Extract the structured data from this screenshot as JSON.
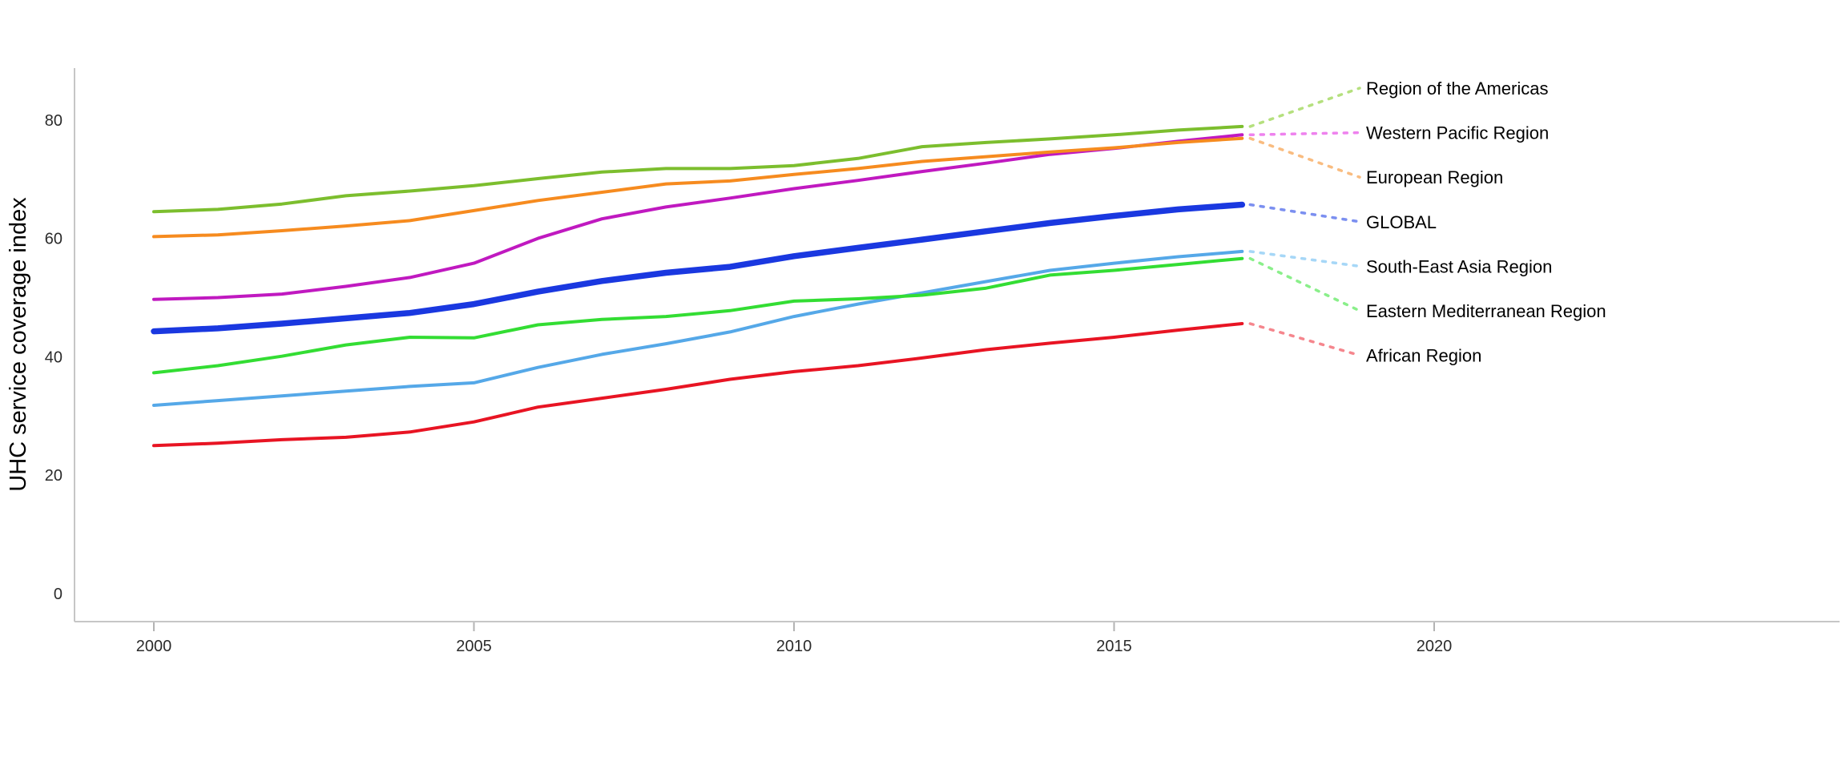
{
  "chart_data": {
    "type": "line",
    "title": "",
    "ylabel": "UHC service coverage index",
    "xlabel": "",
    "x": [
      2000,
      2001,
      2002,
      2003,
      2004,
      2005,
      2006,
      2007,
      2008,
      2009,
      2010,
      2011,
      2012,
      2013,
      2014,
      2015,
      2016,
      2017
    ],
    "x_ticks": [
      "2000",
      "2005",
      "2010",
      "2015",
      "2020"
    ],
    "x_tick_years": [
      2000,
      2005,
      2010,
      2015,
      2020
    ],
    "y_ticks": [
      "0",
      "20",
      "40",
      "60",
      "80"
    ],
    "y_tick_values": [
      0,
      20,
      40,
      60,
      80
    ],
    "ylim": [
      0,
      85
    ],
    "xlim": [
      2000,
      2026
    ],
    "grid": false,
    "legend_position": "right-annotations",
    "series": [
      {
        "name": "Region of the Americas",
        "color": "#7cbe2e",
        "leader_color": "#b5e07e",
        "line_width": 4,
        "values": [
          64.5,
          64.9,
          65.8,
          67.2,
          68.0,
          68.9,
          70.1,
          71.2,
          71.8,
          71.8,
          72.3,
          73.5,
          75.5,
          76.2,
          76.8,
          77.5,
          78.3,
          78.9
        ]
      },
      {
        "name": "Western Pacific Region",
        "color": "#c019c0",
        "leader_color": "#ee82ee",
        "line_width": 4,
        "values": [
          49.7,
          50.0,
          50.6,
          51.9,
          53.4,
          55.8,
          60.0,
          63.3,
          65.3,
          66.8,
          68.4,
          69.8,
          71.3,
          72.7,
          74.2,
          75.2,
          76.4,
          77.5
        ]
      },
      {
        "name": "European Region",
        "color": "#f68b1f",
        "leader_color": "#f9bc80",
        "line_width": 4,
        "values": [
          60.3,
          60.6,
          61.3,
          62.1,
          63.0,
          64.7,
          66.4,
          67.8,
          69.2,
          69.7,
          70.8,
          71.8,
          73.0,
          73.8,
          74.6,
          75.3,
          76.2,
          76.9
        ]
      },
      {
        "name": "GLOBAL",
        "color": "#1a38e0",
        "leader_color": "#7b8ff0",
        "line_width": 7.5,
        "values": [
          44.3,
          44.8,
          45.6,
          46.5,
          47.4,
          48.9,
          51.0,
          52.8,
          54.2,
          55.2,
          57.0,
          58.4,
          59.8,
          61.2,
          62.6,
          63.8,
          64.9,
          65.7
        ]
      },
      {
        "name": "South-East Asia Region",
        "color": "#55a8e8",
        "leader_color": "#a6d7f7",
        "line_width": 4,
        "values": [
          31.8,
          32.6,
          33.4,
          34.2,
          35.0,
          35.6,
          38.2,
          40.4,
          42.2,
          44.2,
          46.8,
          48.9,
          50.8,
          52.7,
          54.6,
          55.8,
          56.9,
          57.8
        ]
      },
      {
        "name": "Eastern Mediterranean Region",
        "color": "#33dd33",
        "leader_color": "#8aef8a",
        "line_width": 4,
        "values": [
          37.3,
          38.5,
          40.1,
          42.0,
          43.3,
          43.2,
          45.4,
          46.3,
          46.8,
          47.8,
          49.4,
          49.8,
          50.4,
          51.6,
          53.8,
          54.6,
          55.6,
          56.6
        ]
      },
      {
        "name": "African Region",
        "color": "#e81423",
        "leader_color": "#f5868d",
        "line_width": 4,
        "values": [
          25.0,
          25.4,
          26.0,
          26.4,
          27.3,
          29.0,
          31.5,
          33.0,
          34.5,
          36.2,
          37.5,
          38.5,
          39.8,
          41.2,
          42.3,
          43.3,
          44.5,
          45.6
        ]
      }
    ]
  }
}
